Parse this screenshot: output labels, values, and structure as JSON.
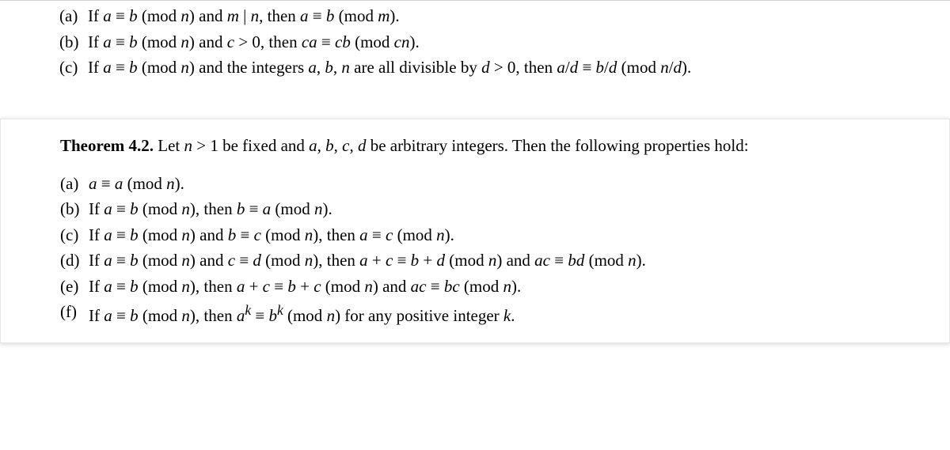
{
  "top": {
    "items": [
      {
        "label": "(a)",
        "html": "If <span class='italic'>a</span> ≡ <span class='italic'>b</span> (mod <span class='italic'>n</span>) and <span class='italic'>m</span> | <span class='italic'>n</span>, then <span class='italic'>a</span> ≡ <span class='italic'>b</span> (mod <span class='italic'>m</span>)."
      },
      {
        "label": "(b)",
        "html": "If <span class='italic'>a</span> ≡ <span class='italic'>b</span> (mod <span class='italic'>n</span>) and <span class='italic'>c</span> &gt; 0, then <span class='italic'>ca</span> ≡ <span class='italic'>cb</span> (mod <span class='italic'>cn</span>)."
      },
      {
        "label": "(c)",
        "html": "If <span class='italic'>a</span> ≡ <span class='italic'>b</span> (mod <span class='italic'>n</span>) and the integers <span class='italic'>a</span>, <span class='italic'>b</span>, <span class='italic'>n</span> are all divisible by <span class='italic'>d</span> &gt; 0, then <span class='italic'>a</span>/<span class='italic'>d</span> ≡ <span class='italic'>b</span>/<span class='italic'>d</span> (mod <span class='italic'>n</span>/<span class='italic'>d</span>)."
      }
    ]
  },
  "theorem": {
    "title": "Theorem 4.2.",
    "intro_html": "Let <span class='italic'>n</span> &gt; 1 be fixed and <span class='italic'>a</span>, <span class='italic'>b</span>, <span class='italic'>c</span>, <span class='italic'>d</span> be arbitrary integers. Then the following properties hold:",
    "items": [
      {
        "label": "(a)",
        "html": "<span class='italic'>a</span> ≡ <span class='italic'>a</span> (mod <span class='italic'>n</span>)."
      },
      {
        "label": "(b)",
        "html": "If <span class='italic'>a</span> ≡ <span class='italic'>b</span> (mod <span class='italic'>n</span>), then <span class='italic'>b</span> ≡ <span class='italic'>a</span> (mod <span class='italic'>n</span>)."
      },
      {
        "label": "(c)",
        "html": "If <span class='italic'>a</span> ≡ <span class='italic'>b</span> (mod <span class='italic'>n</span>) and <span class='italic'>b</span> ≡ <span class='italic'>c</span> (mod <span class='italic'>n</span>), then <span class='italic'>a</span> ≡ <span class='italic'>c</span> (mod <span class='italic'>n</span>)."
      },
      {
        "label": "(d)",
        "html": "If <span class='italic'>a</span> ≡ <span class='italic'>b</span> (mod <span class='italic'>n</span>) and <span class='italic'>c</span> ≡ <span class='italic'>d</span> (mod <span class='italic'>n</span>), then <span class='italic'>a</span> + <span class='italic'>c</span> ≡ <span class='italic'>b</span> + <span class='italic'>d</span> (mod <span class='italic'>n</span>) and <span class='italic'>ac</span> ≡ <span class='italic'>bd</span> (mod <span class='italic'>n</span>)."
      },
      {
        "label": "(e)",
        "html": "If <span class='italic'>a</span> ≡ <span class='italic'>b</span> (mod <span class='italic'>n</span>), then <span class='italic'>a</span> + <span class='italic'>c</span> ≡ <span class='italic'>b</span> + <span class='italic'>c</span> (mod <span class='italic'>n</span>) and <span class='italic'>ac</span> ≡ <span class='italic'>bc</span> (mod <span class='italic'>n</span>)."
      },
      {
        "label": "(f)",
        "html": "If <span class='italic'>a</span> ≡ <span class='italic'>b</span> (mod <span class='italic'>n</span>), then <span class='italic'>a<sup>k</sup></span> ≡ <span class='italic'>b<sup>k</sup></span> (mod <span class='italic'>n</span>) for any positive integer <span class='italic'>k</span>."
      }
    ]
  },
  "style": {
    "font_family": "Times New Roman",
    "font_size_pt": 16,
    "text_color": "#000000",
    "background_color": "#ffffff",
    "box_border_color": "#e8e8e8",
    "box_shadow": "0 1px 6px rgba(0,0,0,0.18)"
  }
}
